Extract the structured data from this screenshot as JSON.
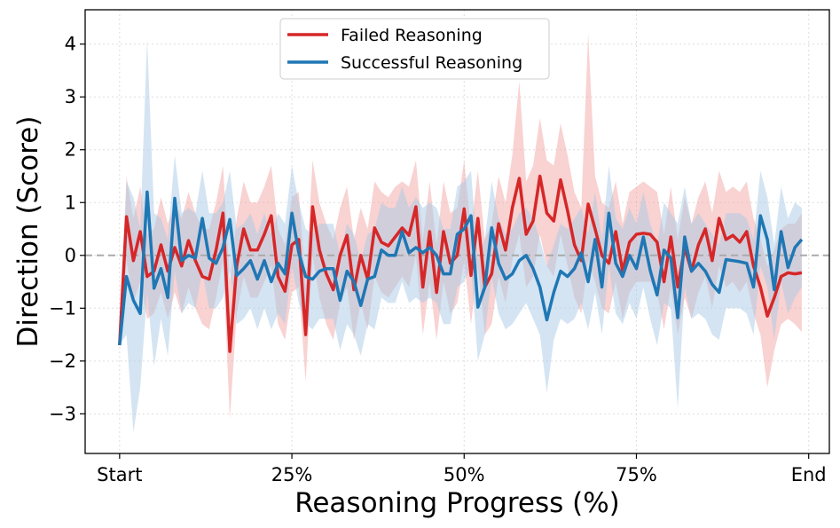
{
  "chart_data": {
    "type": "line",
    "title": "",
    "xlabel": "Reasoning Progress (%)",
    "ylabel": "Direction (Score)",
    "x_tick_labels": [
      "Start",
      "25%",
      "50%",
      "75%",
      "End"
    ],
    "x_tick_positions": [
      0,
      25,
      50,
      75,
      100
    ],
    "xlim": [
      -5,
      103
    ],
    "ylim": [
      -3.75,
      4.65
    ],
    "y_ticks": [
      -3,
      -2,
      -1,
      0,
      1,
      2,
      3,
      4
    ],
    "y_tick_labels": [
      "−3",
      "−2",
      "−1",
      "0",
      "1",
      "2",
      "3",
      "4"
    ],
    "grid": true,
    "reference_line": 0,
    "legend_position": "top-center",
    "x": [
      0,
      1,
      2,
      3,
      4,
      5,
      6,
      7,
      8,
      9,
      10,
      11,
      12,
      13,
      14,
      15,
      16,
      17,
      18,
      19,
      20,
      21,
      22,
      23,
      24,
      25,
      26,
      27,
      28,
      29,
      30,
      31,
      32,
      33,
      34,
      35,
      36,
      37,
      38,
      39,
      40,
      41,
      42,
      43,
      44,
      45,
      46,
      47,
      48,
      49,
      50,
      51,
      52,
      53,
      54,
      55,
      56,
      57,
      58,
      59,
      60,
      61,
      62,
      63,
      64,
      65,
      66,
      67,
      68,
      69,
      70,
      71,
      72,
      73,
      74,
      75,
      76,
      77,
      78,
      79,
      80,
      81,
      82,
      83,
      84,
      85,
      86,
      87,
      88,
      89,
      90,
      91,
      92,
      93,
      94,
      95,
      96,
      97,
      98,
      99
    ],
    "series": [
      {
        "name": "Failed Reasoning",
        "color": "#d62728",
        "band_color": "#f4a6a6",
        "values": [
          -1.7,
          0.73,
          -0.1,
          0.45,
          -0.4,
          -0.3,
          0.2,
          -0.3,
          0.15,
          -0.2,
          0.28,
          -0.1,
          -0.4,
          -0.45,
          0.1,
          0.8,
          -1.82,
          -0.2,
          0.5,
          0.1,
          0.1,
          0.4,
          0.75,
          -0.4,
          -0.68,
          0.2,
          0.3,
          -1.5,
          0.92,
          0.1,
          -0.35,
          -0.65,
          0.0,
          0.38,
          -0.65,
          0.0,
          -0.45,
          0.52,
          0.25,
          0.18,
          0.35,
          0.52,
          0.38,
          0.92,
          -0.6,
          0.45,
          -0.7,
          0.45,
          -0.15,
          0.0,
          0.88,
          -0.38,
          0.7,
          -0.6,
          -0.35,
          0.6,
          0.1,
          0.9,
          1.46,
          0.4,
          0.65,
          1.5,
          0.8,
          0.65,
          1.43,
          0.85,
          0.2,
          -0.1,
          0.97,
          0.5,
          0.0,
          -0.15,
          0.45,
          -0.3,
          0.25,
          0.4,
          0.42,
          0.4,
          0.25,
          -0.5,
          0.35,
          -0.6,
          0.15,
          -0.3,
          0.2,
          0.5,
          -0.1,
          0.7,
          0.3,
          0.38,
          0.25,
          0.45,
          -0.2,
          -0.6,
          -1.15,
          -0.8,
          -0.4,
          -0.33,
          -0.35,
          -0.33
        ],
        "lower": [
          -1.7,
          -0.1,
          -0.9,
          -0.5,
          -1.2,
          -1.1,
          -0.7,
          -1.2,
          -0.7,
          -1.1,
          -0.6,
          -1.0,
          -1.3,
          -1.4,
          -0.8,
          -0.1,
          -3.1,
          -1.1,
          -0.4,
          -0.8,
          -0.8,
          -0.5,
          -0.2,
          -1.3,
          -1.6,
          -0.7,
          -0.6,
          -2.4,
          0.0,
          -0.8,
          -1.3,
          -1.6,
          -0.9,
          -0.6,
          -1.6,
          -0.9,
          -1.4,
          -0.4,
          -0.7,
          -0.8,
          -0.6,
          -0.4,
          -0.6,
          0.0,
          -1.5,
          -0.5,
          -1.6,
          -0.5,
          -1.1,
          -0.9,
          -0.1,
          -1.3,
          -0.2,
          -1.5,
          -1.3,
          -0.4,
          -0.9,
          -0.1,
          0.4,
          -0.6,
          -0.4,
          0.4,
          -0.2,
          -0.4,
          0.4,
          -0.2,
          -0.8,
          -1.1,
          -0.1,
          -0.5,
          -1.0,
          -1.1,
          -0.5,
          -1.2,
          -0.7,
          -0.5,
          -0.5,
          -0.5,
          -0.7,
          -1.4,
          -0.6,
          -1.5,
          -0.8,
          -1.2,
          -0.7,
          -0.4,
          -1.0,
          -0.2,
          -0.6,
          -0.5,
          -0.7,
          -0.5,
          -1.1,
          -1.5,
          -2.5,
          -1.8,
          -1.3,
          -1.2,
          -1.3,
          -1.45
        ],
        "upper": [
          -1.7,
          1.5,
          0.7,
          1.3,
          0.4,
          0.5,
          1.1,
          0.6,
          1.0,
          0.7,
          1.2,
          0.8,
          0.5,
          0.5,
          1.0,
          1.7,
          -0.5,
          0.7,
          1.4,
          1.0,
          1.0,
          1.3,
          1.7,
          0.5,
          0.2,
          1.1,
          1.2,
          -0.6,
          1.8,
          1.0,
          0.6,
          0.3,
          0.9,
          1.3,
          0.3,
          0.9,
          0.5,
          1.4,
          1.2,
          1.1,
          1.3,
          1.4,
          1.3,
          1.8,
          0.3,
          1.4,
          0.2,
          1.4,
          0.8,
          0.9,
          1.8,
          0.5,
          1.6,
          0.3,
          0.6,
          1.5,
          1.0,
          1.9,
          3.3,
          1.4,
          1.7,
          2.6,
          1.8,
          1.7,
          2.5,
          1.9,
          1.2,
          0.9,
          4.2,
          1.5,
          1.0,
          0.9,
          1.4,
          0.6,
          1.2,
          1.3,
          1.4,
          1.3,
          1.2,
          0.4,
          1.3,
          0.3,
          1.1,
          0.6,
          1.1,
          1.4,
          0.8,
          1.6,
          1.2,
          1.3,
          1.2,
          1.4,
          0.7,
          0.3,
          -0.2,
          0.1,
          0.5,
          0.6,
          0.6,
          0.8
        ]
      },
      {
        "name": "Successful Reasoning",
        "color": "#1f77b4",
        "band_color": "#a9c9e6",
        "values": [
          -1.7,
          -0.4,
          -0.85,
          -1.1,
          1.2,
          -0.62,
          -0.25,
          -0.8,
          1.08,
          -0.1,
          0.0,
          -0.05,
          0.7,
          -0.05,
          -0.15,
          0.15,
          0.68,
          -0.38,
          -0.25,
          -0.1,
          -0.45,
          -0.1,
          -0.5,
          -0.15,
          -0.35,
          0.8,
          0.05,
          -0.4,
          -0.45,
          -0.3,
          -0.25,
          -0.25,
          -0.85,
          -0.3,
          -0.5,
          -0.95,
          -0.45,
          -0.4,
          0.1,
          0.0,
          0.0,
          0.45,
          0.05,
          0.15,
          0.05,
          0.15,
          0.0,
          -0.35,
          -0.35,
          0.4,
          0.5,
          0.75,
          -0.98,
          -0.6,
          0.52,
          -0.15,
          -0.45,
          -0.35,
          -0.1,
          0.0,
          -0.25,
          -0.6,
          -1.22,
          -0.7,
          -0.3,
          -0.4,
          -0.25,
          0.05,
          -0.5,
          0.3,
          -0.6,
          0.8,
          -0.15,
          -0.4,
          0.0,
          -0.25,
          0.35,
          -0.28,
          -0.75,
          0.1,
          -0.05,
          -1.18,
          0.35,
          -0.3,
          -0.15,
          -0.3,
          -0.55,
          -0.7,
          -0.08,
          -0.1,
          -0.12,
          -0.15,
          -0.6,
          0.75,
          0.3,
          -0.65,
          0.45,
          -0.23,
          0.15,
          0.3
        ],
        "lower": [
          -1.7,
          -1.5,
          -3.35,
          -2.5,
          -0.7,
          -2.1,
          -1.2,
          -1.9,
          -0.3,
          -1.1,
          -0.9,
          -1.0,
          -0.3,
          -1.0,
          -1.0,
          -0.8,
          -0.3,
          -1.3,
          -1.2,
          -1.0,
          -1.4,
          -1.0,
          -1.4,
          -1.1,
          -1.3,
          -0.2,
          -0.9,
          -1.3,
          -1.4,
          -1.2,
          -1.2,
          -1.2,
          -1.8,
          -1.3,
          -1.5,
          -1.9,
          -1.3,
          -1.4,
          -0.8,
          -0.9,
          -0.9,
          -0.5,
          -0.9,
          -0.8,
          -0.9,
          -0.8,
          -0.9,
          -1.3,
          -1.3,
          -0.6,
          -0.5,
          -0.2,
          -2.0,
          -1.5,
          -0.4,
          -1.1,
          -1.4,
          -1.3,
          -1.1,
          -0.9,
          -1.2,
          -1.5,
          -2.6,
          -1.6,
          -1.2,
          -1.3,
          -1.2,
          -0.9,
          -1.4,
          -0.7,
          -1.5,
          -0.2,
          -1.1,
          -1.3,
          -0.9,
          -1.2,
          -0.6,
          -1.2,
          -1.7,
          -0.9,
          -1.0,
          -2.9,
          -0.6,
          -1.2,
          -1.1,
          -1.2,
          -1.5,
          -1.6,
          -1.0,
          -1.0,
          -1.0,
          -1.1,
          -1.5,
          -0.2,
          -0.6,
          -1.6,
          -0.5,
          -1.1,
          -0.8,
          -0.6
        ],
        "upper": [
          -1.7,
          1.4,
          1.1,
          0.5,
          4.1,
          0.8,
          0.7,
          0.3,
          1.9,
          0.8,
          0.9,
          0.8,
          1.6,
          0.8,
          0.8,
          1.0,
          1.6,
          0.5,
          0.6,
          0.8,
          0.4,
          0.8,
          0.4,
          0.8,
          0.6,
          1.7,
          1.0,
          0.5,
          0.4,
          0.6,
          0.6,
          0.6,
          0.0,
          0.6,
          0.4,
          -0.1,
          0.4,
          0.5,
          1.0,
          0.9,
          0.9,
          1.3,
          0.9,
          1.1,
          0.9,
          1.0,
          0.9,
          0.5,
          0.5,
          1.3,
          1.4,
          1.6,
          -0.1,
          0.3,
          1.4,
          0.7,
          0.4,
          0.5,
          0.8,
          0.9,
          0.7,
          0.3,
          -0.2,
          0.2,
          0.6,
          0.5,
          0.7,
          0.9,
          0.4,
          1.2,
          0.3,
          1.7,
          0.7,
          0.5,
          0.9,
          0.6,
          1.2,
          0.6,
          0.2,
          1.0,
          0.8,
          0.6,
          1.3,
          0.6,
          0.8,
          0.6,
          0.4,
          0.2,
          0.8,
          0.8,
          0.8,
          0.7,
          0.3,
          1.6,
          1.1,
          0.2,
          1.3,
          0.7,
          1.0,
          0.9
        ]
      }
    ]
  }
}
